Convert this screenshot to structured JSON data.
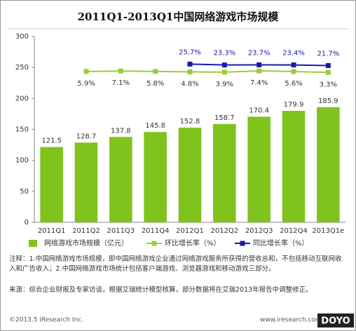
{
  "chart_data": {
    "type": "bar",
    "title": "2011Q1-2013Q1中国网络游戏市场规模",
    "categories": [
      "2011Q1",
      "2011Q2",
      "2011Q3",
      "2011Q4",
      "2012Q1",
      "2012Q2",
      "2012Q3",
      "2012Q4",
      "2013Q1e"
    ],
    "series": [
      {
        "name": "网络游戏市场规模（亿元）",
        "type": "bar",
        "color": "#7fc31c",
        "values": [
          121.5,
          128.7,
          137.8,
          145.8,
          152.8,
          158.7,
          170.4,
          179.9,
          185.9
        ]
      },
      {
        "name": "环比增长率（%）",
        "type": "line",
        "axis": "y2",
        "color": "#9ccc3c",
        "values": [
          null,
          5.9,
          7.1,
          5.8,
          4.8,
          3.9,
          7.4,
          5.6,
          3.3
        ],
        "value_labels": [
          null,
          "5.9%",
          "7.1%",
          "5.8%",
          "4.8%",
          "3.9%",
          "7.4%",
          "5.6%",
          "3.3%"
        ]
      },
      {
        "name": "同比增长率（%）",
        "type": "line",
        "axis": "y2",
        "color": "#1a1aa8",
        "values": [
          null,
          null,
          null,
          null,
          25.7,
          23.3,
          23.7,
          23.4,
          21.7
        ],
        "value_labels": [
          null,
          null,
          null,
          null,
          "25.7%",
          "23.3%",
          "23.7%",
          "23.4%",
          "21.7%"
        ]
      }
    ],
    "ylim": [
      0,
      300
    ],
    "yticks": [
      0,
      50,
      100,
      150,
      200,
      250,
      300
    ],
    "y2lim": [
      -400,
      100
    ],
    "legend": "bottom"
  },
  "notes": [
    "注释：1.中国网络游戏市场规模，即中国网络游戏企业通过网络游戏服务所获得的营收总和，不包括移动互联网收入和广告收入；2.中国网络游戏市场统计包括客户端游戏、浏览器游戏和移动游戏三部分。",
    "来源：综合企业财报及专家访谈，根据艾瑞统计模型核算，部分数据将在艾瑞2013年报告中调整修正。"
  ],
  "footer": {
    "left": "©2013.5 iResearch Inc.",
    "right": "www.iresearch.com.cn",
    "watermark": "DOYO"
  }
}
